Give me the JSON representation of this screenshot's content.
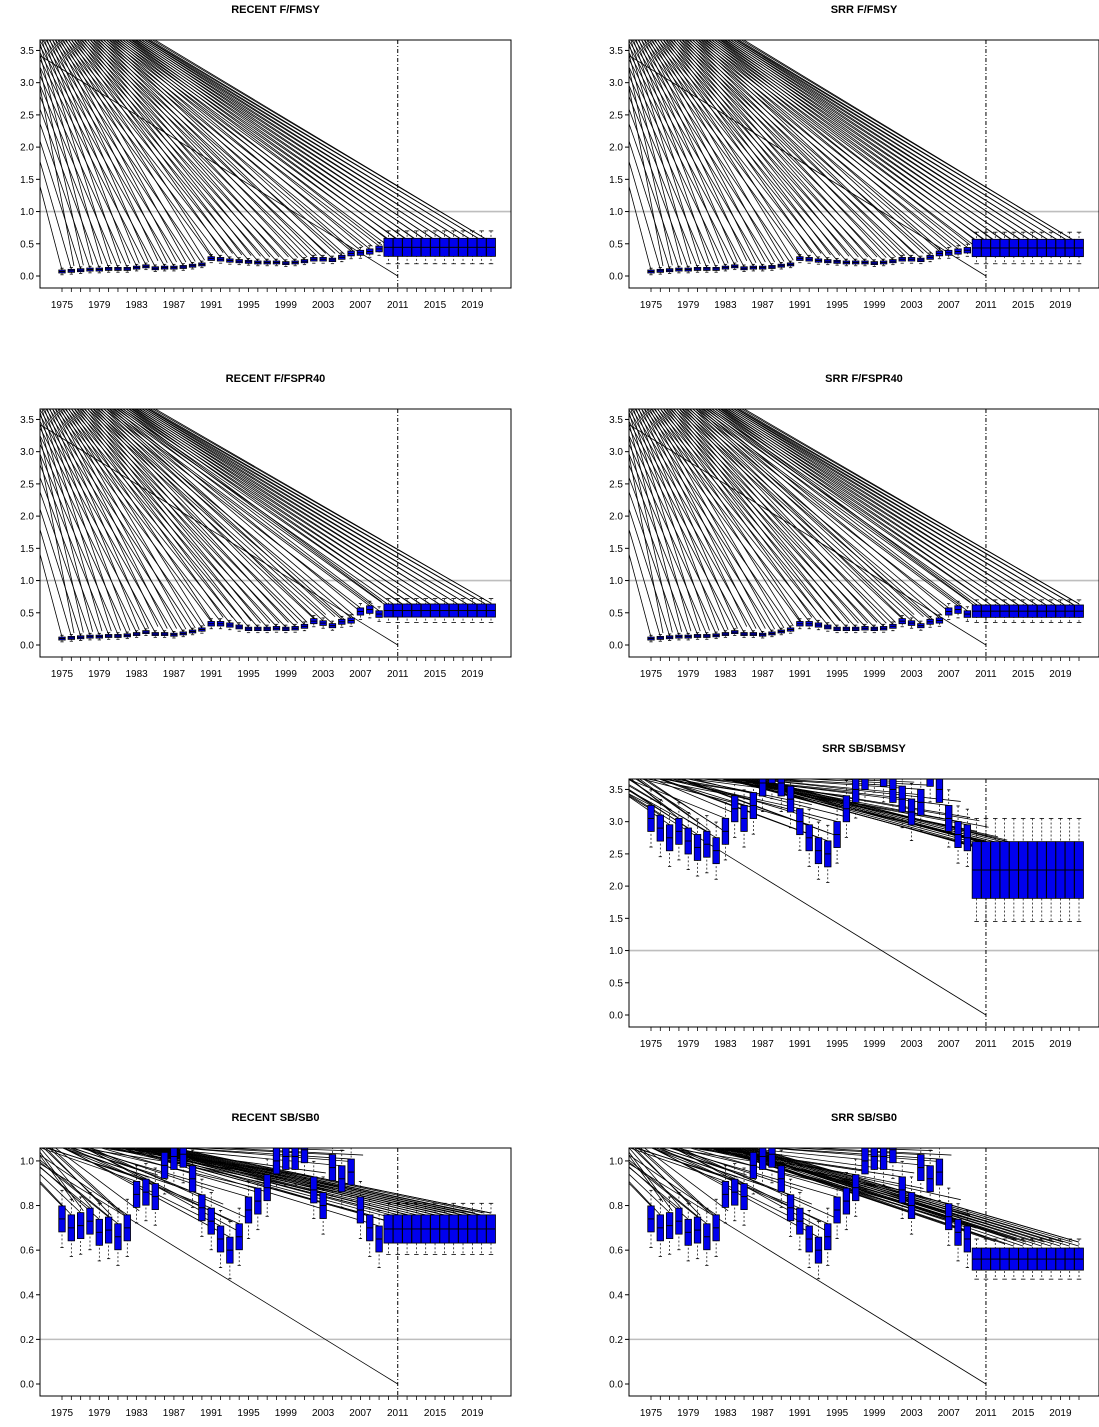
{
  "colors": {
    "box_fill": "#0000ee",
    "reference_line": "#bebebe",
    "vertical_line": "#000000",
    "frame": "#000000"
  },
  "x_axis": {
    "first_year": 1975,
    "last_year": 2021,
    "tick_labels": [
      "1975",
      "1979",
      "1983",
      "1987",
      "1991",
      "1995",
      "1999",
      "2003",
      "2007",
      "2011",
      "2015",
      "2019"
    ],
    "divider_year": 2011
  },
  "chart_data": [
    {
      "title": "RECENT F/FMSY",
      "type": "boxplot",
      "ylim": [
        0,
        3.6
      ],
      "y_ticks": [
        "0.0",
        "0.5",
        "1.0",
        "1.5",
        "2.0",
        "2.5",
        "3.0",
        "3.5"
      ],
      "reference_line": 1.0,
      "medians": [
        0.07,
        0.08,
        0.09,
        0.1,
        0.1,
        0.11,
        0.11,
        0.11,
        0.13,
        0.15,
        0.12,
        0.13,
        0.13,
        0.14,
        0.16,
        0.18,
        0.27,
        0.26,
        0.24,
        0.23,
        0.22,
        0.21,
        0.21,
        0.21,
        0.2,
        0.21,
        0.23,
        0.26,
        0.26,
        0.25,
        0.29,
        0.35,
        0.36,
        0.38,
        0.42,
        0.42,
        0.42,
        0.42,
        0.42,
        0.42,
        0.42,
        0.42,
        0.42,
        0.42,
        0.42,
        0.42,
        0.42
      ],
      "upper_whisker": 0.7,
      "lower_whisker": 0.19,
      "projection_start_year": 2010
    },
    {
      "title": "SRR F/FMSY",
      "type": "boxplot",
      "ylim": [
        0,
        3.6
      ],
      "y_ticks": [
        "0.0",
        "0.5",
        "1.0",
        "1.5",
        "2.0",
        "2.5",
        "3.0",
        "3.5"
      ],
      "reference_line": 1.0,
      "medians": [
        0.07,
        0.08,
        0.09,
        0.1,
        0.1,
        0.11,
        0.11,
        0.11,
        0.13,
        0.15,
        0.12,
        0.13,
        0.13,
        0.14,
        0.16,
        0.18,
        0.27,
        0.26,
        0.24,
        0.23,
        0.22,
        0.21,
        0.21,
        0.21,
        0.2,
        0.21,
        0.23,
        0.26,
        0.26,
        0.25,
        0.29,
        0.35,
        0.36,
        0.38,
        0.4,
        0.4,
        0.4,
        0.4,
        0.4,
        0.4,
        0.4,
        0.4,
        0.4,
        0.4,
        0.4,
        0.4,
        0.4
      ],
      "upper_whisker": 0.68,
      "lower_whisker": 0.19,
      "projection_start_year": 2010
    },
    {
      "title": "RECENT F/FSPR40",
      "type": "boxplot",
      "ylim": [
        0,
        3.6
      ],
      "y_ticks": [
        "0.0",
        "0.5",
        "1.0",
        "1.5",
        "2.0",
        "2.5",
        "3.0",
        "3.5"
      ],
      "reference_line": 1.0,
      "medians": [
        0.1,
        0.11,
        0.12,
        0.13,
        0.13,
        0.14,
        0.14,
        0.15,
        0.17,
        0.2,
        0.17,
        0.17,
        0.16,
        0.18,
        0.21,
        0.24,
        0.33,
        0.33,
        0.31,
        0.28,
        0.25,
        0.25,
        0.25,
        0.26,
        0.25,
        0.26,
        0.29,
        0.37,
        0.34,
        0.3,
        0.36,
        0.38,
        0.52,
        0.55,
        0.48,
        0.53,
        0.53,
        0.53,
        0.53,
        0.53,
        0.53,
        0.53,
        0.53,
        0.53,
        0.53,
        0.53,
        0.53
      ],
      "upper_whisker": 0.72,
      "lower_whisker": 0.35,
      "projection_start_year": 2010
    },
    {
      "title": "SRR F/FSPR40",
      "type": "boxplot",
      "ylim": [
        0,
        3.6
      ],
      "y_ticks": [
        "0.0",
        "0.5",
        "1.0",
        "1.5",
        "2.0",
        "2.5",
        "3.0",
        "3.5"
      ],
      "reference_line": 1.0,
      "medians": [
        0.1,
        0.11,
        0.12,
        0.13,
        0.13,
        0.14,
        0.14,
        0.15,
        0.17,
        0.2,
        0.17,
        0.17,
        0.16,
        0.18,
        0.21,
        0.24,
        0.33,
        0.33,
        0.31,
        0.28,
        0.25,
        0.25,
        0.25,
        0.26,
        0.25,
        0.26,
        0.29,
        0.37,
        0.34,
        0.3,
        0.36,
        0.38,
        0.52,
        0.55,
        0.48,
        0.53,
        0.52,
        0.52,
        0.52,
        0.52,
        0.52,
        0.52,
        0.52,
        0.52,
        0.52,
        0.52,
        0.52
      ],
      "upper_whisker": 0.7,
      "lower_whisker": 0.35,
      "projection_start_year": 2010
    },
    {
      "title": "SRR SB/SBMSY",
      "type": "boxplot",
      "ylim": [
        0,
        3.6
      ],
      "y_ticks": [
        "0.0",
        "0.5",
        "1.0",
        "1.5",
        "2.0",
        "2.5",
        "3.0",
        "3.5"
      ],
      "reference_line": 1.0,
      "medians": [
        3.05,
        2.9,
        2.75,
        2.85,
        2.7,
        2.6,
        2.65,
        2.55,
        2.85,
        3.2,
        3.05,
        3.25,
        3.6,
        3.8,
        3.6,
        3.35,
        3.0,
        2.75,
        2.55,
        2.5,
        2.8,
        3.2,
        3.5,
        3.7,
        3.9,
        3.75,
        3.5,
        3.35,
        3.15,
        3.3,
        3.75,
        3.5,
        3.05,
        2.8,
        2.75,
        2.65,
        2.5,
        2.45,
        2.3,
        2.25,
        2.2,
        2.15,
        2.15,
        2.15,
        2.15,
        2.15,
        2.15
      ],
      "upper_whisker": 3.05,
      "lower_whisker": 1.45,
      "projection_start_year": 2010
    },
    {
      "title": "RECENT SB/SB0",
      "type": "boxplot",
      "ylim": [
        0,
        1.04
      ],
      "y_ticks": [
        "0.0",
        "0.2",
        "0.4",
        "0.6",
        "0.8",
        "1.0"
      ],
      "reference_line": 0.2,
      "medians": [
        0.74,
        0.7,
        0.71,
        0.73,
        0.68,
        0.69,
        0.66,
        0.7,
        0.85,
        0.86,
        0.84,
        0.98,
        1.02,
        1.03,
        0.92,
        0.79,
        0.73,
        0.65,
        0.6,
        0.66,
        0.78,
        0.82,
        0.88,
        1.0,
        1.02,
        1.02,
        1.05,
        0.87,
        0.8,
        0.97,
        0.92,
        0.95,
        0.78,
        0.7,
        0.65,
        0.67,
        0.68,
        0.69,
        0.69,
        0.69,
        0.69,
        0.69,
        0.69,
        0.69,
        0.69,
        0.69,
        0.69
      ],
      "upper_whisker": 0.81,
      "lower_whisker": 0.58,
      "projection_start_year": 2010
    },
    {
      "title": "SRR SB/SB0",
      "type": "boxplot",
      "ylim": [
        0,
        1.04
      ],
      "y_ticks": [
        "0.0",
        "0.2",
        "0.4",
        "0.6",
        "0.8",
        "1.0"
      ],
      "reference_line": 0.2,
      "medians": [
        0.74,
        0.7,
        0.71,
        0.73,
        0.68,
        0.69,
        0.66,
        0.7,
        0.85,
        0.86,
        0.84,
        0.98,
        1.02,
        1.03,
        0.92,
        0.79,
        0.73,
        0.65,
        0.6,
        0.66,
        0.78,
        0.82,
        0.88,
        1.0,
        1.02,
        1.02,
        1.05,
        0.87,
        0.8,
        0.97,
        0.92,
        0.95,
        0.75,
        0.68,
        0.65,
        0.64,
        0.6,
        0.58,
        0.57,
        0.56,
        0.56,
        0.56,
        0.56,
        0.56,
        0.56,
        0.56,
        0.56
      ],
      "upper_whisker": 0.65,
      "lower_whisker": 0.47,
      "projection_start_year": 2010
    }
  ]
}
